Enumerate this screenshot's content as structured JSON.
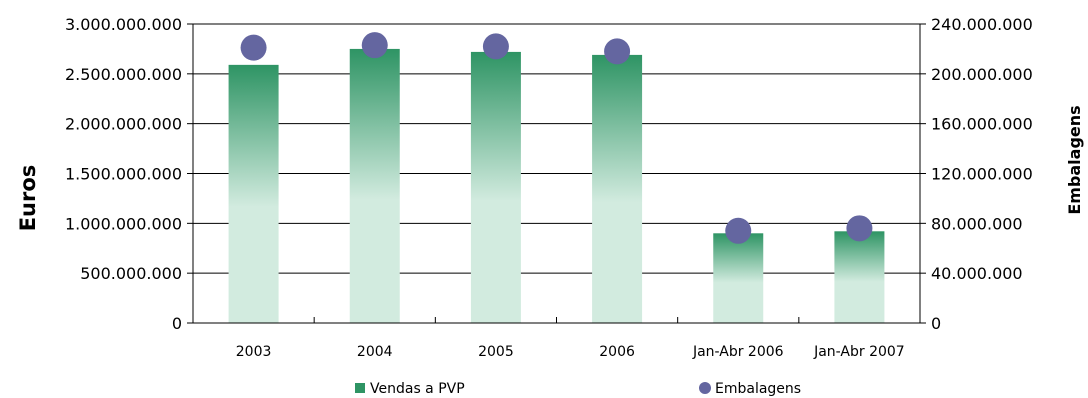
{
  "chart_data": {
    "type": "bar",
    "categories": [
      "2003",
      "2004",
      "2005",
      "2006",
      "Jan-Abr 2006",
      "Jan-Abr 2007"
    ],
    "series": [
      {
        "name": "Vendas a PVP",
        "type": "bar",
        "axis": "left",
        "values": [
          2590000000,
          2750000000,
          2720000000,
          2690000000,
          900000000,
          920000000
        ]
      },
      {
        "name": "Embalagens",
        "type": "scatter",
        "axis": "right",
        "values": [
          221000000,
          223000000,
          222000000,
          218000000,
          74000000,
          76000000
        ]
      }
    ],
    "ylabel": "Euros",
    "ylabel_right": "Embalagens",
    "ylim": [
      0,
      3000000000
    ],
    "ylim_right": [
      0,
      240000000
    ],
    "yticks_left": [
      "0",
      "500.000.000",
      "1.000.000.000",
      "1.500.000.000",
      "2.000.000.000",
      "2.500.000.000",
      "3.000.000.000"
    ],
    "yticks_right": [
      "0",
      "40.000.000",
      "80.000.000",
      "120.000.000",
      "160.000.000",
      "200.000.000",
      "240.000.000"
    ],
    "grid": true,
    "legend_position": "bottom",
    "colors": {
      "bar_top": "#2e9464",
      "bar_bottom": "#d2ebdf",
      "marker": "#6466a0",
      "grid": "#000000"
    }
  }
}
